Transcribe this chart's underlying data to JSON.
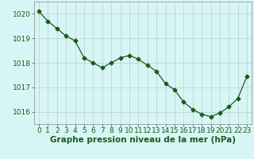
{
  "x": [
    0,
    1,
    2,
    3,
    4,
    5,
    6,
    7,
    8,
    9,
    10,
    11,
    12,
    13,
    14,
    15,
    16,
    17,
    18,
    19,
    20,
    21,
    22,
    23
  ],
  "y": [
    1020.1,
    1019.7,
    1019.4,
    1019.1,
    1018.9,
    1018.2,
    1018.0,
    1017.8,
    1018.0,
    1018.2,
    1018.3,
    1018.15,
    1017.9,
    1017.65,
    1017.15,
    1016.9,
    1016.4,
    1016.1,
    1015.9,
    1015.8,
    1015.95,
    1016.2,
    1016.55,
    1017.45
  ],
  "line_color": "#1a5c1a",
  "marker": "D",
  "marker_size": 2.5,
  "bg_color": "#d8f5f5",
  "grid_color": "#b8d8d8",
  "xlabel": "Graphe pression niveau de la mer (hPa)",
  "xlabel_fontsize": 7.5,
  "tick_label_color": "#1a5c1a",
  "tick_fontsize": 6.5,
  "ylim_min": 1015.5,
  "ylim_max": 1020.5,
  "yticks": [
    1016,
    1017,
    1018,
    1019,
    1020
  ],
  "xticks": [
    0,
    1,
    2,
    3,
    4,
    5,
    6,
    7,
    8,
    9,
    10,
    11,
    12,
    13,
    14,
    15,
    16,
    17,
    18,
    19,
    20,
    21,
    22,
    23
  ]
}
